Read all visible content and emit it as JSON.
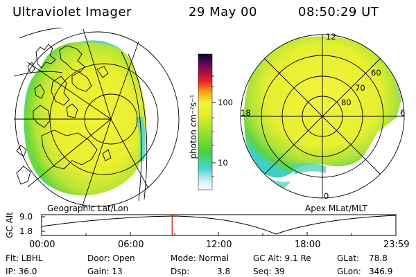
{
  "header": {
    "instrument": "Ultraviolet Imager",
    "date": "29 May 00",
    "time": "08:50:29 UT"
  },
  "colorbar": {
    "unit_label": "photon cm⁻²s⁻¹",
    "ticks": [
      "100",
      "10"
    ]
  },
  "geo_panel": {
    "label": "Geographic Lat/Lon"
  },
  "apex_panel": {
    "label": "Apex MLat/MLT",
    "mlt_labels": {
      "top": "12",
      "left": "18",
      "right": "6",
      "bottom": "0"
    },
    "mlat_labels": [
      "60",
      "70",
      "80"
    ]
  },
  "timeline": {
    "ylabel": "GC Alt",
    "ymax": "9.0",
    "ymin": "1.8",
    "xticks": [
      "00:00",
      "06:00",
      "12:00",
      "18:00",
      "23:59"
    ],
    "current_time_fraction": 0.3684
  },
  "footer": {
    "flt": "Flt: LBHL",
    "ip": "IP: 36.0",
    "door": "Door: Open",
    "gain": "Gain: 13",
    "mode": "Mode: Normal",
    "dsp": "Dsp:",
    "dsp_val": "3.8",
    "gcalt": "GC Alt: 9.1 Re",
    "seq": "Seq: 39",
    "glat": "GLat:",
    "glat_val": "78.8",
    "glon": "GLon:",
    "glon_val": "346.9"
  },
  "colors": {
    "aurora_yellow": "#e8ee2a",
    "aurora_green": "#66d82a",
    "aurora_cyan": "#3ad4d4",
    "timeline_marker": "#cc0000"
  }
}
